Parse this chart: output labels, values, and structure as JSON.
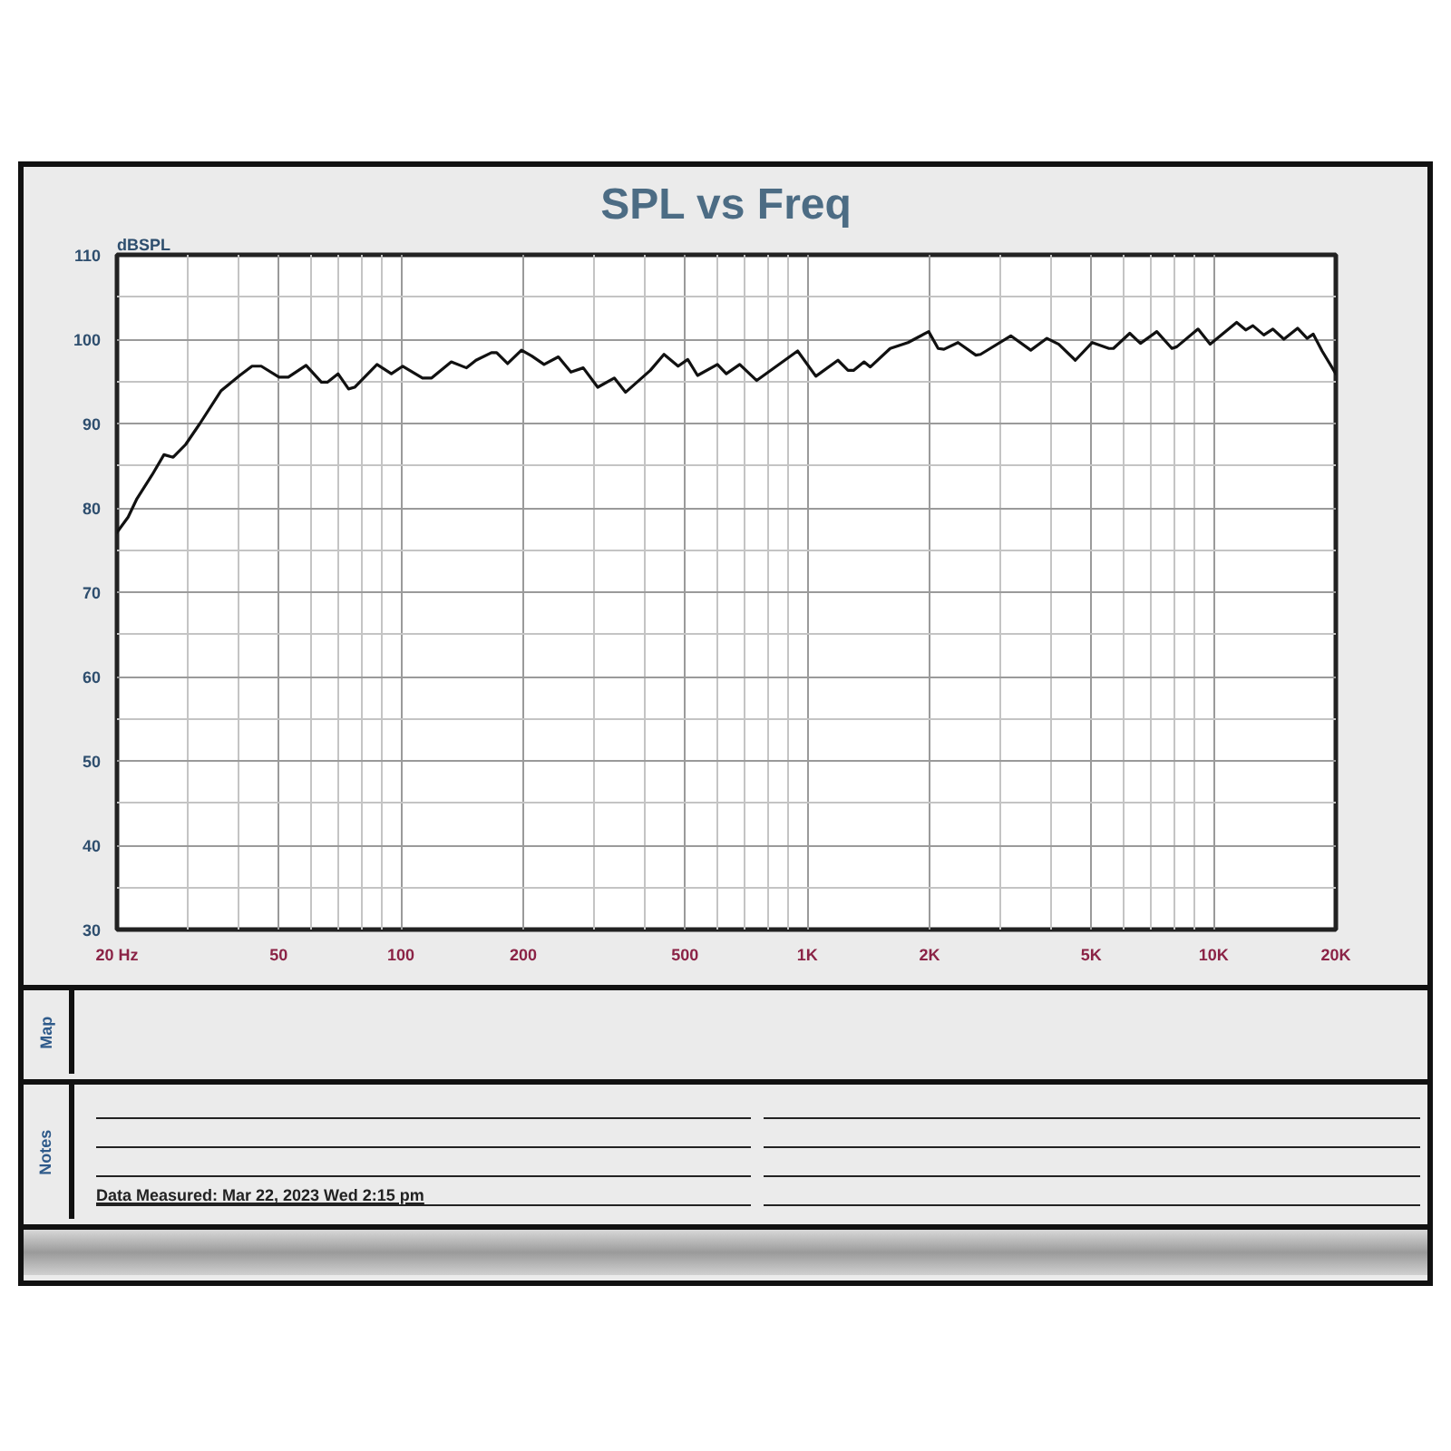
{
  "chart_data": {
    "type": "line",
    "title": "SPL vs Freq",
    "ylabel": "dBSPL",
    "annotations": [
      "Map",
      "Notes",
      "Data Measured: Mar 22, 2023 Wed 2:15 pm"
    ],
    "log": "x",
    "xlim": [
      20,
      20000
    ],
    "ylim": [
      30,
      110
    ],
    "xticks": [
      {
        "value": 20,
        "label": "20 Hz"
      },
      {
        "value": 30,
        "label": null
      },
      {
        "value": 40,
        "label": null
      },
      50,
      {
        "value": 60,
        "label": null
      },
      {
        "value": 70,
        "label": null
      },
      {
        "value": 80,
        "label": null
      },
      {
        "value": 90,
        "label": null
      },
      100,
      200,
      {
        "value": 300,
        "label": null
      },
      {
        "value": 400,
        "label": null
      },
      500,
      {
        "value": 600,
        "label": null
      },
      {
        "value": 700,
        "label": null
      },
      {
        "value": 800,
        "label": null
      },
      {
        "value": 900,
        "label": null
      },
      {
        "value": 1000,
        "label": "1K"
      },
      {
        "value": 2000,
        "label": "2K"
      },
      {
        "value": 3000,
        "label": null
      },
      {
        "value": 4000,
        "label": null
      },
      {
        "value": 5000,
        "label": "5K"
      },
      {
        "value": 6000,
        "label": null
      },
      {
        "value": 7000,
        "label": null
      },
      {
        "value": 8000,
        "label": null
      },
      {
        "value": 9000,
        "label": null
      },
      {
        "value": 10000,
        "label": "10K"
      },
      {
        "value": 20000,
        "label": "20K"
      }
    ],
    "yticks": [
      30,
      {
        "value": 35,
        "label": null
      },
      40,
      {
        "value": 45,
        "label": null
      },
      50,
      {
        "value": 55,
        "label": null
      },
      60,
      {
        "value": 65,
        "label": null
      },
      70,
      {
        "value": 75,
        "label": null
      },
      80,
      {
        "value": 85,
        "label": null
      },
      90,
      {
        "value": 95,
        "label": null
      },
      100,
      {
        "value": 105,
        "label": null
      },
      110
    ],
    "grid": true,
    "line_style": "solid",
    "x": [
      20,
      21.3,
      22.4,
      24.4,
      26.1,
      27.5,
      29.5,
      32.0,
      36.1,
      40.1,
      43.0,
      45.3,
      50.1,
      52.8,
      58.4,
      63.7,
      65.9,
      70.0,
      74.3,
      76.9,
      87.3,
      94.7,
      101,
      113,
      119,
      133,
      145,
      153,
      167,
      172,
      183,
      198,
      210,
      225,
      244,
      262,
      281,
      305,
      335,
      357,
      411,
      444,
      481,
      508,
      537,
      601,
      632,
      682,
      751,
      947,
      1050,
      1190,
      1260,
      1300,
      1380,
      1430,
      1600,
      1770,
      1990,
      2100,
      2170,
      2350,
      2600,
      2670,
      3170,
      3550,
      3890,
      4160,
      4570,
      5030,
      5530,
      5670,
      6220,
      6610,
      7250,
      7900,
      8120,
      9160,
      9810,
      11400,
      12000,
      12500,
      13300,
      14000,
      14900,
      16100,
      17000,
      17600,
      18500,
      20000
    ],
    "series": [
      {
        "color": "#111111",
        "values": [
          77.1,
          78.9,
          81.1,
          83.9,
          86.3,
          86.0,
          87.5,
          90.0,
          93.9,
          95.7,
          96.8,
          96.8,
          95.5,
          95.5,
          96.9,
          94.9,
          94.9,
          95.9,
          94.1,
          94.3,
          97.0,
          95.9,
          96.8,
          95.4,
          95.4,
          97.3,
          96.6,
          97.5,
          98.4,
          98.4,
          97.1,
          98.7,
          98.0,
          97.0,
          97.9,
          96.1,
          96.6,
          94.3,
          95.4,
          93.7,
          96.3,
          98.2,
          96.8,
          97.6,
          95.7,
          97.0,
          95.9,
          97.0,
          95.1,
          98.6,
          95.6,
          97.5,
          96.3,
          96.3,
          97.3,
          96.7,
          98.9,
          99.6,
          100.9,
          98.9,
          98.8,
          99.6,
          98.1,
          98.2,
          100.4,
          98.7,
          100.1,
          99.4,
          97.5,
          99.6,
          98.9,
          98.9,
          100.7,
          99.5,
          100.9,
          98.9,
          99.1,
          101.2,
          99.4,
          102.0,
          101.1,
          101.6,
          100.5,
          101.2,
          100.0,
          101.3,
          100.1,
          100.6,
          98.6,
          95.9
        ]
      }
    ]
  }
}
